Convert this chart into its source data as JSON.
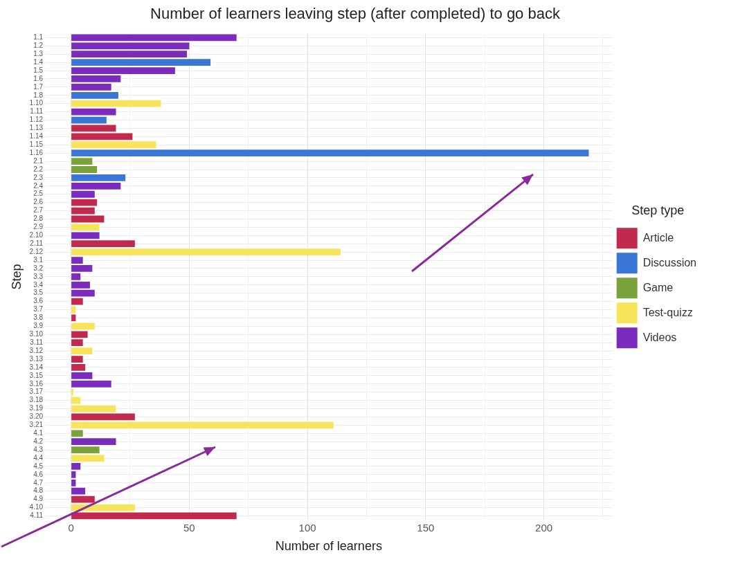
{
  "chart_data": {
    "type": "bar",
    "orientation": "horizontal",
    "stacked": true,
    "title": "Number of learners leaving step (after completed) to go back",
    "xlabel": "Number of learners",
    "ylabel": "Step",
    "legend_title": "Step type",
    "legend": "right",
    "grid": true,
    "categories": [
      "1.1",
      "1.2",
      "1.3",
      "1.4",
      "1.5",
      "1.6",
      "1.7",
      "1.8",
      "1.10",
      "1.11",
      "1.12",
      "1.13",
      "1.14",
      "1.15",
      "1.16",
      "2.1",
      "2.2",
      "2.3",
      "2.4",
      "2.5",
      "2.6",
      "2.7",
      "2.8",
      "2.9",
      "2.10",
      "2.11",
      "2.12",
      "3.1",
      "3.2",
      "3.3",
      "3.4",
      "3.5",
      "3.6",
      "3.7",
      "3.8",
      "3.9",
      "3.10",
      "3.11",
      "3.12",
      "3.13",
      "3.14",
      "3.15",
      "3.16",
      "3.17",
      "3.18",
      "3.19",
      "3.20",
      "3.21",
      "4.1",
      "4.2",
      "4.3",
      "4.4",
      "4.5",
      "4.6",
      "4.7",
      "4.8",
      "4.9",
      "4.10",
      "4.11"
    ],
    "xlim": [
      -11,
      229
    ],
    "xticks": [
      0,
      {
        "value": 25,
        "label": null
      },
      50,
      {
        "value": 75,
        "label": null
      },
      100,
      {
        "value": 125,
        "label": null
      },
      150,
      {
        "value": 175,
        "label": null
      },
      200,
      {
        "value": 225,
        "label": null
      }
    ],
    "series": [
      {
        "name": "Article",
        "color": "#c2294f",
        "values": [
          null,
          null,
          null,
          null,
          null,
          null,
          null,
          null,
          null,
          null,
          null,
          19,
          26,
          null,
          null,
          null,
          null,
          null,
          null,
          null,
          11,
          10,
          14,
          null,
          null,
          27,
          null,
          null,
          null,
          null,
          null,
          null,
          5,
          null,
          2,
          null,
          7,
          5,
          null,
          5,
          6,
          null,
          null,
          null,
          null,
          null,
          27,
          null,
          null,
          null,
          null,
          null,
          null,
          null,
          null,
          null,
          10,
          null,
          70
        ]
      },
      {
        "name": "Discussion",
        "color": "#3a76d6",
        "values": [
          null,
          null,
          null,
          59,
          null,
          null,
          null,
          20,
          null,
          null,
          15,
          null,
          null,
          null,
          219,
          null,
          null,
          23,
          null,
          null,
          null,
          null,
          null,
          null,
          null,
          null,
          null,
          null,
          null,
          null,
          null,
          null,
          null,
          null,
          null,
          null,
          null,
          null,
          null,
          null,
          null,
          null,
          null,
          null,
          null,
          null,
          null,
          null,
          null,
          null,
          null,
          null,
          null,
          null,
          null,
          null,
          null,
          null,
          null
        ]
      },
      {
        "name": "Game",
        "color": "#7aa23a",
        "values": [
          null,
          null,
          null,
          null,
          null,
          null,
          null,
          null,
          null,
          null,
          null,
          null,
          null,
          null,
          null,
          9,
          11,
          null,
          null,
          null,
          null,
          null,
          null,
          null,
          null,
          null,
          null,
          null,
          null,
          null,
          null,
          null,
          null,
          null,
          null,
          null,
          null,
          null,
          null,
          null,
          null,
          null,
          null,
          null,
          null,
          null,
          null,
          null,
          5,
          null,
          12,
          null,
          null,
          null,
          null,
          null,
          null,
          null,
          null
        ]
      },
      {
        "name": "Test-quizz",
        "color": "#f8e45a",
        "values": [
          null,
          null,
          null,
          null,
          null,
          null,
          null,
          null,
          38,
          null,
          null,
          null,
          null,
          36,
          null,
          null,
          null,
          null,
          null,
          null,
          null,
          null,
          null,
          12,
          null,
          null,
          114,
          null,
          null,
          null,
          null,
          null,
          null,
          2,
          null,
          10,
          null,
          null,
          9,
          null,
          null,
          null,
          null,
          1,
          4,
          19,
          null,
          111,
          null,
          null,
          null,
          14,
          null,
          null,
          null,
          null,
          null,
          27,
          null
        ]
      },
      {
        "name": "Videos",
        "color": "#7b2cbf",
        "values": [
          70,
          50,
          49,
          null,
          44,
          21,
          17,
          null,
          null,
          19,
          null,
          null,
          null,
          null,
          null,
          null,
          null,
          null,
          21,
          10,
          null,
          null,
          null,
          null,
          12,
          null,
          null,
          5,
          9,
          4,
          8,
          10,
          null,
          null,
          null,
          null,
          null,
          null,
          null,
          null,
          null,
          9,
          17,
          null,
          null,
          null,
          null,
          null,
          null,
          19,
          null,
          null,
          4,
          2,
          2,
          6,
          null,
          null,
          null
        ]
      }
    ]
  }
}
